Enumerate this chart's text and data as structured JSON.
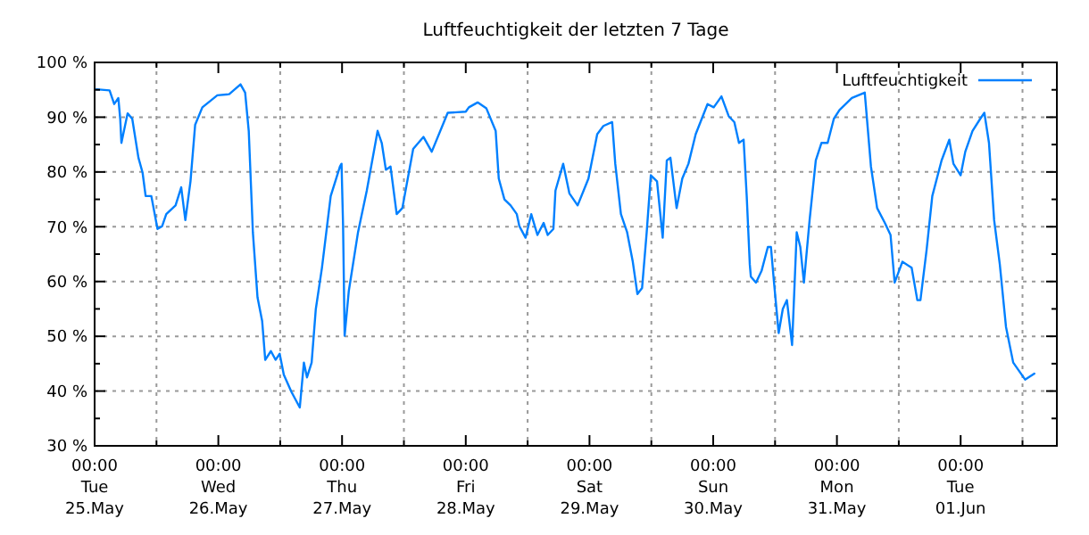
{
  "chart_data": {
    "type": "line",
    "title": "Luftfeuchtigkeit der letzten 7 Tage",
    "legend": "top right",
    "grid": true,
    "marker": "none",
    "line_style": "solid",
    "xlim": [
      "--05-25T00:00",
      "--06-01T18:40"
    ],
    "xticks": [
      {
        "value": "--05-25T00:00",
        "label": "00:00\nTue\n25.May"
      },
      {
        "value": "--05-25T12:00",
        "label": null
      },
      {
        "value": "--05-26T00:00",
        "label": "00:00\nWed\n26.May"
      },
      {
        "value": "--05-26T12:00",
        "label": null
      },
      {
        "value": "--05-27T00:00",
        "label": "00:00\nThu\n27.May"
      },
      {
        "value": "--05-27T12:00",
        "label": null
      },
      {
        "value": "--05-28T00:00",
        "label": "00:00\nFri\n28.May"
      },
      {
        "value": "--05-28T12:00",
        "label": null
      },
      {
        "value": "--05-29T00:00",
        "label": "00:00\nSat\n29.May"
      },
      {
        "value": "--05-29T12:00",
        "label": null
      },
      {
        "value": "--05-30T00:00",
        "label": "00:00\nSun\n30.May"
      },
      {
        "value": "--05-30T12:00",
        "label": null
      },
      {
        "value": "--05-31T00:00",
        "label": "00:00\nMon\n31.May"
      },
      {
        "value": "--05-31T12:00",
        "label": null
      },
      {
        "value": "--06-01T00:00",
        "label": "00:00\nTue\n01.Jun"
      },
      {
        "value": "--06-01T12:00",
        "label": null
      }
    ],
    "ylim": [
      30,
      100
    ],
    "yticks": [
      {
        "value": 30,
        "label": "30 %"
      },
      {
        "value": 35,
        "label": null
      },
      {
        "value": 40,
        "label": "40 %"
      },
      {
        "value": 45,
        "label": null
      },
      {
        "value": 50,
        "label": "50 %"
      },
      {
        "value": 55,
        "label": null
      },
      {
        "value": 60,
        "label": "60 %"
      },
      {
        "value": 65,
        "label": null
      },
      {
        "value": 70,
        "label": "70 %"
      },
      {
        "value": 75,
        "label": null
      },
      {
        "value": 80,
        "label": "80 %"
      },
      {
        "value": 85,
        "label": null
      },
      {
        "value": 90,
        "label": "90 %"
      },
      {
        "value": 95,
        "label": null
      },
      {
        "value": 100,
        "label": "100 %"
      }
    ],
    "x": [
      "--05-25T00:21",
      "--05-25T02:54",
      "--05-25T03:48",
      "--05-25T04:36",
      "--05-25T04:58",
      "--05-25T05:12",
      "--05-25T06:24",
      "--05-25T07:18",
      "--05-25T08:30",
      "--05-25T09:18",
      "--05-25T09:54",
      "--05-25T11:00",
      "--05-25T12:12",
      "--05-25T13:06",
      "--05-25T13:54",
      "--05-25T15:42",
      "--05-25T16:48",
      "--05-25T17:36",
      "--05-25T18:36",
      "--05-25T19:30",
      "--05-25T20:54",
      "--05-25T23:48",
      "--05-26T02:06",
      "--05-26T04:18",
      "--05-26T05:12",
      "--05-26T05:54",
      "--05-26T06:42",
      "--05-26T07:36",
      "--05-26T08:30",
      "--05-26T09:06",
      "--05-26T10:12",
      "--05-26T11:06",
      "--05-26T11:54",
      "--05-26T12:42",
      "--05-26T14:12",
      "--05-26T15:48",
      "--05-26T16:36",
      "--05-26T17:12",
      "--05-26T18:06",
      "--05-26T18:54",
      "--05-26T20:06",
      "--05-26T21:48",
      "--05-26T23:36",
      "--05-26T23:54",
      "--05-27T00:12",
      "--05-27T00:30",
      "--05-27T01:18",
      "--05-27T03:06",
      "--05-27T04:48",
      "--05-27T06:54",
      "--05-27T07:42",
      "--05-27T08:30",
      "--05-27T09:24",
      "--05-27T10:36",
      "--05-27T11:42",
      "--05-27T13:48",
      "--05-27T15:48",
      "--05-27T17:24",
      "--05-27T20:30",
      "--05-28T00:00",
      "--05-28T00:36",
      "--05-28T02:18",
      "--05-28T04:00",
      "--05-28T05:48",
      "--05-28T06:24",
      "--05-28T07:30",
      "--05-28T08:42",
      "--05-28T09:54",
      "--05-28T10:24",
      "--05-28T11:36",
      "--05-28T12:42",
      "--05-28T13:54",
      "--05-28T15:06",
      "--05-28T15:54",
      "--05-28T17:00",
      "--05-28T17:24",
      "--05-28T18:54",
      "--05-28T20:06",
      "--05-28T21:42",
      "--05-28T23:48",
      "--05-29T01:30",
      "--05-29T02:42",
      "--05-29T04:24",
      "--05-29T05:00",
      "--05-29T06:06",
      "--05-29T07:18",
      "--05-29T08:24",
      "--05-29T09:18",
      "--05-29T10:12",
      "--05-29T11:06",
      "--05-29T11:54",
      "--05-29T13:06",
      "--05-29T14:12",
      "--05-29T15:00",
      "--05-29T15:42",
      "--05-29T16:54",
      "--05-29T18:00",
      "--05-29T19:12",
      "--05-29T20:36",
      "--05-29T22:54",
      "--05-30T00:06",
      "--05-30T01:36",
      "--05-30T03:00",
      "--05-30T04:06",
      "--05-30T05:00",
      "--05-30T05:54",
      "--05-30T06:30",
      "--05-30T07:06",
      "--05-30T07:18",
      "--05-30T08:18",
      "--05-30T09:24",
      "--05-30T10:36",
      "--05-30T11:12",
      "--05-30T11:48",
      "--05-30T12:42",
      "--05-30T13:30",
      "--05-30T14:18",
      "--05-30T15:18",
      "--05-30T16:12",
      "--05-30T16:54",
      "--05-30T17:36",
      "--05-30T18:42",
      "--05-30T19:54",
      "--05-30T21:00",
      "--05-30T22:12",
      "--05-30T23:24",
      "--05-31T00:30",
      "--05-31T02:54",
      "--05-31T05:24",
      "--05-31T06:36",
      "--05-31T07:48",
      "--05-31T09:18",
      "--05-31T10:24",
      "--05-31T11:12",
      "--05-31T12:42",
      "--05-31T14:30",
      "--05-31T15:36",
      "--05-31T16:12",
      "--05-31T17:24",
      "--05-31T18:30",
      "--05-31T20:18",
      "--05-31T21:48",
      "--05-31T22:36",
      "--06-01T00:00",
      "--06-01T00:54",
      "--06-01T02:18",
      "--06-01T03:48",
      "--06-01T04:36",
      "--06-01T05:30",
      "--06-01T06:30",
      "--06-01T07:36",
      "--06-01T08:48",
      "--06-01T10:12",
      "--06-01T12:30",
      "--06-01T14:18"
    ],
    "series": [
      {
        "name": "Luftfeuchtigkeit",
        "color": "#0080ff",
        "values": [
          95.1,
          94.9,
          92.4,
          93.5,
          89.7,
          85.3,
          90.7,
          89.7,
          82.6,
          79.9,
          75.6,
          75.6,
          69.6,
          70.1,
          72.3,
          73.9,
          77.2,
          71.2,
          78.3,
          88.6,
          91.8,
          94.0,
          94.2,
          96.0,
          94.5,
          87.5,
          69.0,
          57.1,
          52.8,
          45.7,
          47.3,
          45.7,
          46.8,
          43.0,
          39.8,
          37.0,
          45.2,
          42.5,
          45.2,
          54.9,
          62.5,
          75.6,
          81.0,
          81.5,
          70.1,
          50.1,
          58.2,
          69.0,
          76.6,
          87.5,
          85.3,
          80.4,
          81.0,
          72.3,
          73.4,
          84.2,
          86.4,
          83.7,
          90.8,
          91.0,
          91.8,
          92.7,
          91.6,
          87.5,
          78.8,
          75.0,
          73.9,
          72.3,
          70.1,
          68.0,
          72.3,
          68.5,
          70.7,
          68.5,
          69.6,
          76.6,
          81.5,
          76.1,
          73.9,
          78.8,
          86.9,
          88.4,
          89.1,
          81.5,
          72.3,
          69.0,
          63.6,
          57.7,
          58.8,
          69.0,
          79.4,
          78.3,
          68.0,
          82.1,
          82.6,
          73.4,
          78.8,
          81.5,
          86.9,
          92.4,
          91.8,
          93.8,
          90.2,
          89.1,
          85.3,
          85.9,
          75.6,
          63.1,
          60.9,
          59.8,
          62.0,
          66.3,
          66.3,
          59.8,
          50.6,
          55.0,
          56.6,
          48.4,
          69.0,
          66.3,
          59.8,
          71.2,
          82.1,
          85.3,
          85.3,
          89.7,
          91.3,
          93.5,
          94.5,
          81.0,
          73.4,
          70.7,
          68.5,
          59.8,
          63.6,
          62.5,
          56.6,
          56.6,
          65.8,
          75.6,
          82.1,
          85.9,
          81.5,
          79.4,
          83.7,
          87.5,
          89.7,
          90.8,
          85.3,
          71.2,
          63.1,
          51.7,
          45.2,
          42.1,
          43.2
        ]
      }
    ]
  }
}
